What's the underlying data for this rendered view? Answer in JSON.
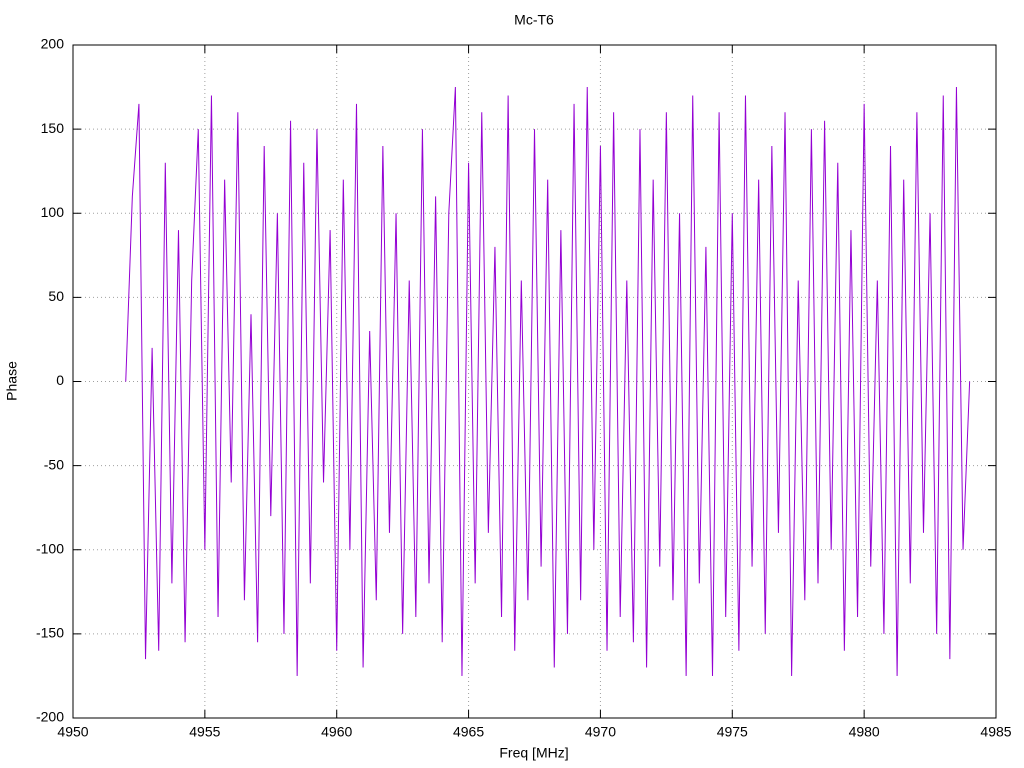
{
  "chart_data": {
    "type": "line",
    "title": "Mc-T6",
    "x_label": "Freq [MHz]",
    "y_label": "Phase",
    "xlim": [
      4950,
      4985
    ],
    "xticks": [
      4950,
      4955,
      4960,
      4965,
      4970,
      4975,
      4980,
      4985
    ],
    "ylim": [
      -200,
      200
    ],
    "yticks": [
      -200,
      -150,
      -100,
      -50,
      0,
      50,
      100,
      150,
      200
    ],
    "grid": true,
    "series": [
      {
        "color": "#9400d3",
        "x": [
          4952,
          4952.25,
          4952.5,
          4952.75,
          4953,
          4953.25,
          4953.5,
          4953.75,
          4954,
          4954.25,
          4954.5,
          4954.75,
          4955,
          4955.25,
          4955.5,
          4955.75,
          4956,
          4956.25,
          4956.5,
          4956.75,
          4957,
          4957.25,
          4957.5,
          4957.75,
          4958,
          4958.25,
          4958.5,
          4958.75,
          4959,
          4959.25,
          4959.5,
          4959.75,
          4960,
          4960.25,
          4960.5,
          4960.75,
          4961,
          4961.25,
          4961.5,
          4961.75,
          4962,
          4962.25,
          4962.5,
          4962.75,
          4963,
          4963.25,
          4963.5,
          4963.75,
          4964,
          4964.25,
          4964.5,
          4964.75,
          4965,
          4965.25,
          4965.5,
          4965.75,
          4966,
          4966.25,
          4966.5,
          4966.75,
          4967,
          4967.25,
          4967.5,
          4967.75,
          4968,
          4968.25,
          4968.5,
          4968.75,
          4969,
          4969.25,
          4969.5,
          4969.75,
          4970,
          4970.25,
          4970.5,
          4970.75,
          4971,
          4971.25,
          4971.5,
          4971.75,
          4972,
          4972.25,
          4972.5,
          4972.75,
          4973,
          4973.25,
          4973.5,
          4973.75,
          4974,
          4974.25,
          4974.5,
          4974.75,
          4975,
          4975.25,
          4975.5,
          4975.75,
          4976,
          4976.25,
          4976.5,
          4976.75,
          4977,
          4977.25,
          4977.5,
          4977.75,
          4978,
          4978.25,
          4978.5,
          4978.75,
          4979,
          4979.25,
          4979.5,
          4979.75,
          4980,
          4980.25,
          4980.5,
          4980.75,
          4981,
          4981.25,
          4981.5,
          4981.75,
          4982,
          4982.25,
          4982.5,
          4982.75,
          4983,
          4983.25,
          4983.5,
          4983.75,
          4984
        ],
        "values": [
          0,
          110,
          165,
          -165,
          20,
          -160,
          130,
          -120,
          90,
          -155,
          60,
          150,
          -100,
          170,
          -140,
          120,
          -60,
          160,
          -130,
          40,
          -155,
          140,
          -80,
          100,
          -150,
          155,
          -175,
          130,
          -120,
          150,
          -60,
          90,
          -160,
          120,
          -100,
          165,
          -170,
          30,
          -130,
          140,
          -90,
          100,
          -150,
          60,
          -140,
          150,
          -120,
          110,
          -155,
          100,
          175,
          -175,
          130,
          -120,
          160,
          -90,
          80,
          -140,
          170,
          -160,
          60,
          -130,
          150,
          -110,
          120,
          -170,
          90,
          -150,
          165,
          -130,
          175,
          -100,
          140,
          -160,
          160,
          -140,
          60,
          -155,
          150,
          -170,
          120,
          -110,
          160,
          -130,
          100,
          -175,
          170,
          -120,
          80,
          -175,
          160,
          -140,
          100,
          -160,
          170,
          -110,
          120,
          -150,
          140,
          -90,
          160,
          -175,
          60,
          -130,
          150,
          -120,
          155,
          -100,
          130,
          -160,
          90,
          -140,
          165,
          -110,
          60,
          -150,
          140,
          -175,
          120,
          -120,
          160,
          -90,
          100,
          -150,
          170,
          -165,
          175,
          -100,
          0
        ]
      }
    ]
  }
}
